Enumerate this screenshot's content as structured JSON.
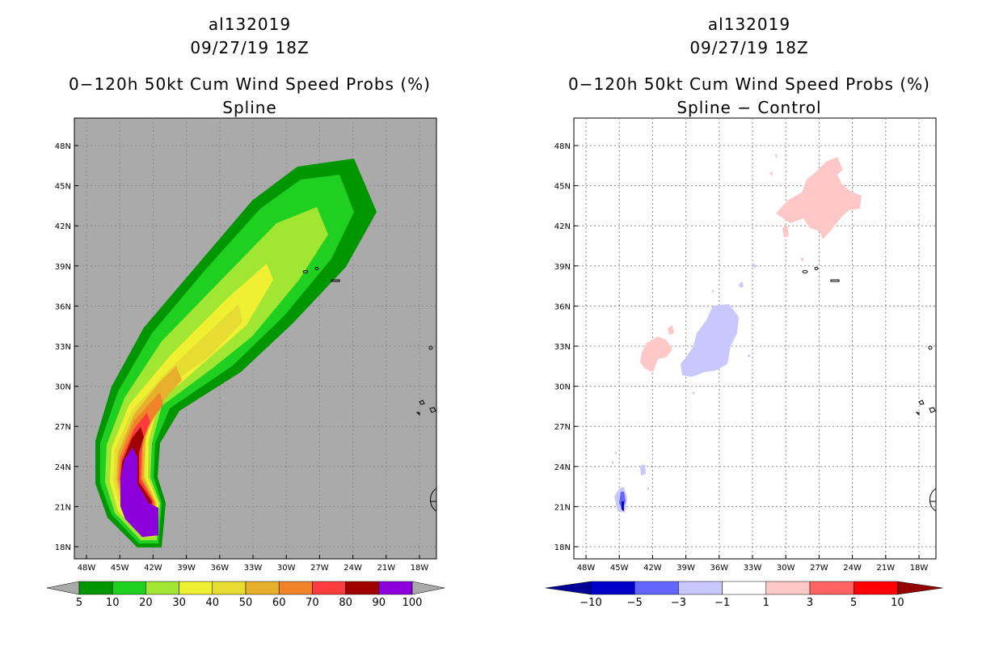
{
  "panels": [
    {
      "storm_id": "al132019",
      "datetime": "09/27/19 18Z",
      "title": "0−120h 50kt Cum Wind Speed Probs (%)",
      "subtitle": "Spline",
      "lat_labels": [
        "48N",
        "45N",
        "42N",
        "39N",
        "36N",
        "33N",
        "30N",
        "27N",
        "24N",
        "21N",
        "18N"
      ],
      "lon_labels": [
        "48W",
        "45W",
        "42W",
        "39W",
        "36W",
        "33W",
        "30W",
        "27W",
        "24W",
        "21W",
        "18W"
      ],
      "colorbar": {
        "labels": [
          "5",
          "10",
          "20",
          "30",
          "40",
          "50",
          "60",
          "70",
          "80",
          "90",
          "100"
        ],
        "colors": [
          "#009600",
          "#20d020",
          "#a0e632",
          "#f0f032",
          "#e6dc32",
          "#e6af2d",
          "#f08228",
          "#fa3c3c",
          "#a00000",
          "#8c00dc"
        ],
        "end_color": "#aaaaaa"
      },
      "background": "#aaaaaa"
    },
    {
      "storm_id": "al132019",
      "datetime": "09/27/19 18Z",
      "title": "0−120h 50kt Cum Wind Speed Probs (%)",
      "subtitle": "Spline − Control",
      "lat_labels": [
        "48N",
        "45N",
        "42N",
        "39N",
        "36N",
        "33N",
        "30N",
        "27N",
        "24N",
        "21N",
        "18N"
      ],
      "lon_labels": [
        "48W",
        "45W",
        "42W",
        "39W",
        "36W",
        "33W",
        "30W",
        "27W",
        "24W",
        "21W",
        "18W"
      ],
      "colorbar": {
        "labels": [
          "−10",
          "−5",
          "−3",
          "−1",
          "1",
          "3",
          "5",
          "10"
        ],
        "colors": [
          "#0000c8",
          "#6464ff",
          "#c8c8ff",
          "#ffffff",
          "#ffc8c8",
          "#ff6464",
          "#ff0000"
        ],
        "left_end_color": "#000096",
        "right_end_color": "#960000"
      },
      "background": "#ffffff"
    }
  ]
}
